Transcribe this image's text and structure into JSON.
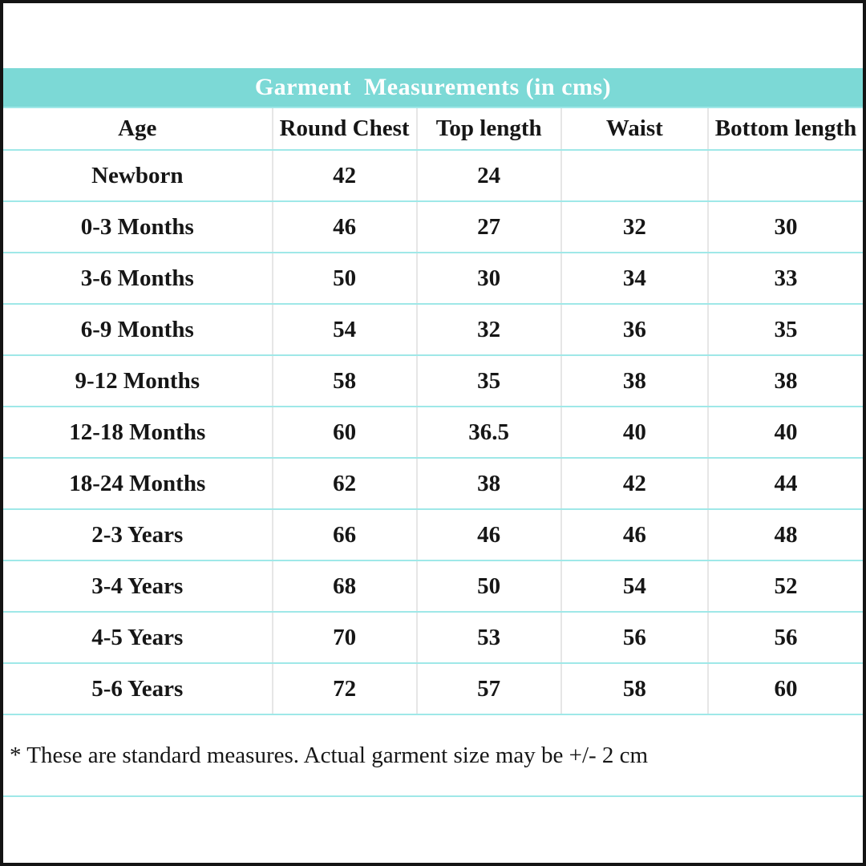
{
  "colors": {
    "header_band": "#7cd9d6",
    "row_line": "#9fe8e8",
    "column_line": "#e6e6e6",
    "frame": "#141414",
    "title_text": "#ffffff",
    "body_text": "#161616"
  },
  "title_bar": {
    "label": "Garment  Measurements (in cms)"
  },
  "table": {
    "columns": [
      "Age",
      "Round Chest",
      "Top length",
      "Waist",
      "Bottom length"
    ],
    "rows": [
      [
        "Newborn",
        "42",
        "24",
        "",
        ""
      ],
      [
        "0-3 Months",
        "46",
        "27",
        "32",
        "30"
      ],
      [
        "3-6 Months",
        "50",
        "30",
        "34",
        "33"
      ],
      [
        "6-9 Months",
        "54",
        "32",
        "36",
        "35"
      ],
      [
        "9-12 Months",
        "58",
        "35",
        "38",
        "38"
      ],
      [
        "12-18 Months",
        "60",
        "36.5",
        "40",
        "40"
      ],
      [
        "18-24 Months",
        "62",
        "38",
        "42",
        "44"
      ],
      [
        "2-3 Years",
        "66",
        "46",
        "46",
        "48"
      ],
      [
        "3-4 Years",
        "68",
        "50",
        "54",
        "52"
      ],
      [
        "4-5 Years",
        "70",
        "53",
        "56",
        "56"
      ],
      [
        "5-6 Years",
        "72",
        "57",
        "58",
        "60"
      ]
    ]
  },
  "footnote": {
    "text": "* These are standard measures. Actual garment size may be +/- 2 cm"
  }
}
